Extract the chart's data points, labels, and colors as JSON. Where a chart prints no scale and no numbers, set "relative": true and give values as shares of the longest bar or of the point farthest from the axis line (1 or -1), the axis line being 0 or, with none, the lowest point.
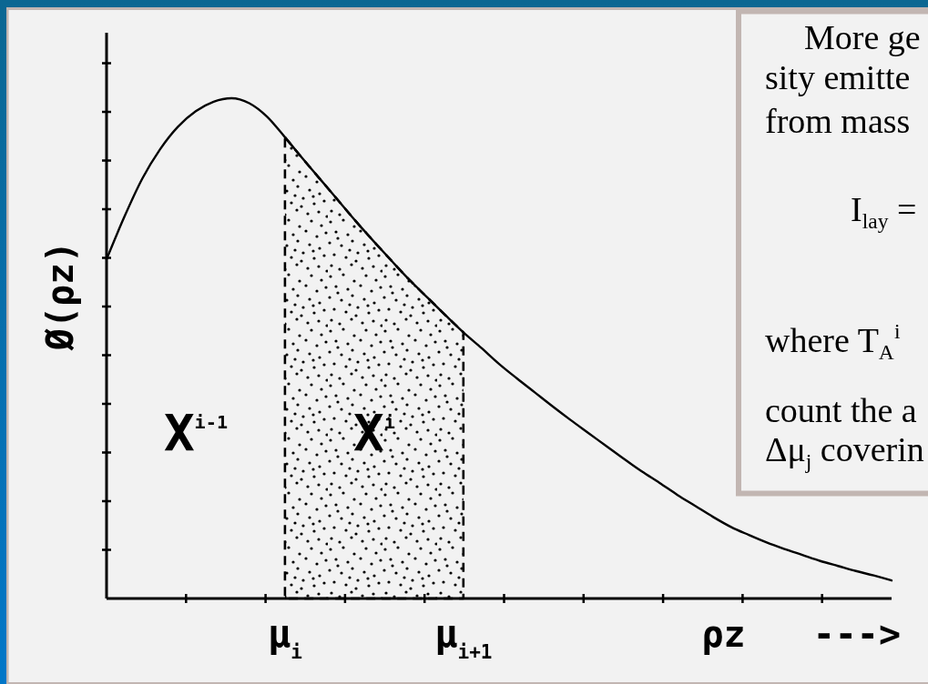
{
  "chart_data": [
    {
      "type": "line",
      "relative": true,
      "xlabel": "ρz --->",
      "ylabel": "Ø(ρz)",
      "categories": [
        null,
        null,
        null,
        null,
        null,
        null,
        null,
        null,
        null,
        null,
        "μ$_{i}$",
        null,
        null,
        null,
        null,
        null,
        null,
        null,
        null,
        null,
        "μ$_{i+1}$",
        null,
        null,
        null,
        null,
        null,
        null,
        null,
        null,
        null,
        null,
        null,
        null,
        null,
        null,
        null,
        null,
        null,
        null,
        null,
        null,
        null,
        null,
        null,
        null
      ],
      "annotations": [
        "X$^{i-1}$",
        "X$^{i}$"
      ],
      "series": [
        {
          "type": "line",
          "color": "#000000",
          "values": [
            0.678,
            0.763,
            0.839,
            0.898,
            0.943,
            0.974,
            0.993,
            1.0,
            0.99,
            0.963,
            0.922,
            0.879,
            0.837,
            0.795,
            0.753,
            0.713,
            0.674,
            0.636,
            0.601,
            0.566,
            0.532,
            0.501,
            0.469,
            0.44,
            0.412,
            0.384,
            0.357,
            0.331,
            0.305,
            0.279,
            0.254,
            0.231,
            0.207,
            0.185,
            0.163,
            0.143,
            0.127,
            0.112,
            0.099,
            0.087,
            0.075,
            0.065,
            0.055,
            0.046,
            0.036
          ]
        },
        {
          "type": "area",
          "color": "#000000",
          "line_style": "dashed",
          "values": [
            null,
            null,
            null,
            null,
            null,
            null,
            null,
            null,
            null,
            null,
            0.922,
            0.879,
            0.837,
            0.795,
            0.753,
            0.713,
            0.674,
            0.636,
            0.601,
            0.566,
            0.532,
            null,
            null,
            null,
            null,
            null,
            null,
            null,
            null,
            null,
            null,
            null,
            null,
            null,
            null,
            null,
            null,
            null,
            null,
            null,
            null,
            null,
            null,
            null,
            null
          ]
        }
      ]
    },
    {
      "type": "other",
      "annotations": [
        "More ge",
        "sity emitte",
        "from mass",
        "I$_{lay}$ =",
        "where T$_{A}$$^{i}$",
        "count the a",
        "Δμ$_{j}$ coverin"
      ]
    }
  ]
}
